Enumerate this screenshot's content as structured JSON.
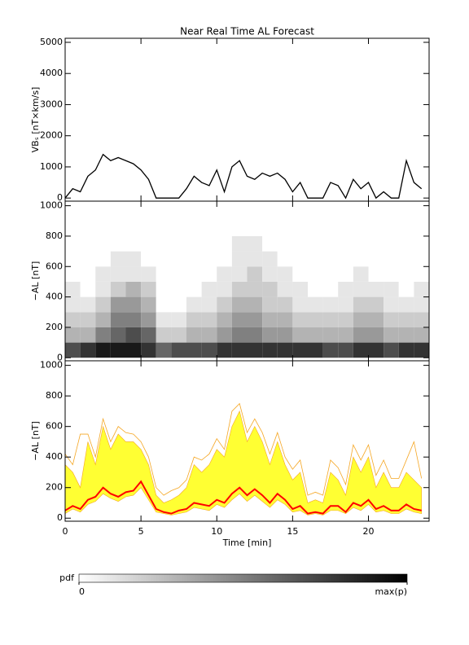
{
  "chart_data": [
    {
      "type": "line",
      "title": "Near Real Time AL Forecast",
      "ylabel": "VBₛ [nT×km/s]",
      "x": [
        0,
        0.5,
        1,
        1.5,
        2,
        2.5,
        3,
        3.5,
        4,
        4.5,
        5,
        5.5,
        6,
        6.5,
        7,
        7.5,
        8,
        8.5,
        9,
        9.5,
        10,
        10.5,
        11,
        11.5,
        12,
        12.5,
        13,
        13.5,
        14,
        14.5,
        15,
        15.5,
        16,
        16.5,
        17,
        17.5,
        18,
        18.5,
        19,
        19.5,
        20,
        20.5,
        21,
        21.5,
        22,
        22.5,
        23,
        23.5
      ],
      "series": [
        {
          "color": "#000000",
          "values": [
            0,
            300,
            200,
            700,
            900,
            1400,
            1200,
            1300,
            1200,
            1100,
            900,
            600,
            0,
            0,
            0,
            0,
            300,
            700,
            500,
            400,
            900,
            200,
            1000,
            1200,
            700,
            600,
            800,
            700,
            800,
            600,
            200,
            500,
            0,
            0,
            0,
            500,
            400,
            0,
            600,
            300,
            500,
            0,
            200,
            0,
            0,
            1200,
            500,
            300
          ]
        }
      ],
      "xlim": [
        0,
        24
      ],
      "xticks": [
        0,
        5,
        10,
        15,
        20
      ],
      "show_xtick_labels": false,
      "ylim": [
        -100,
        5130
      ],
      "yticks": [
        0,
        1000,
        2000,
        3000,
        4000,
        5000
      ]
    },
    {
      "type": "heatmap",
      "ylabel": "−AL [nT]",
      "xbins": [
        0,
        1,
        2,
        3,
        4,
        5,
        6,
        7,
        8,
        9,
        10,
        11,
        12,
        13,
        14,
        15,
        16,
        17,
        18,
        19,
        20,
        21,
        22,
        23,
        24
      ],
      "ybins": [
        0,
        100,
        200,
        300,
        400,
        500,
        600,
        700,
        800
      ],
      "z": [
        [
          0.7,
          0.8,
          0.9,
          0.9,
          0.9,
          0.8,
          0.6,
          0.7,
          0.7,
          0.7,
          0.8,
          0.8,
          0.8,
          0.8,
          0.8,
          0.8,
          0.8,
          0.7,
          0.7,
          0.8,
          0.8,
          0.7,
          0.8,
          0.8
        ],
        [
          0.3,
          0.3,
          0.5,
          0.6,
          0.7,
          0.6,
          0.2,
          0.2,
          0.3,
          0.3,
          0.4,
          0.5,
          0.5,
          0.4,
          0.4,
          0.3,
          0.3,
          0.3,
          0.3,
          0.4,
          0.4,
          0.3,
          0.3,
          0.3
        ],
        [
          0.2,
          0.2,
          0.3,
          0.5,
          0.5,
          0.4,
          0.1,
          0.1,
          0.2,
          0.2,
          0.3,
          0.4,
          0.4,
          0.3,
          0.3,
          0.2,
          0.2,
          0.2,
          0.2,
          0.3,
          0.3,
          0.2,
          0.2,
          0.2
        ],
        [
          0.1,
          0.1,
          0.2,
          0.4,
          0.4,
          0.3,
          0,
          0,
          0.1,
          0.1,
          0.2,
          0.3,
          0.3,
          0.2,
          0.2,
          0.1,
          0.1,
          0.1,
          0.1,
          0.2,
          0.2,
          0.1,
          0.1,
          0.1
        ],
        [
          0.1,
          0,
          0.1,
          0.2,
          0.3,
          0.2,
          0,
          0,
          0,
          0.1,
          0.1,
          0.2,
          0.2,
          0.2,
          0.1,
          0.1,
          0,
          0,
          0.1,
          0.1,
          0.1,
          0.1,
          0,
          0.1
        ],
        [
          0,
          0,
          0.1,
          0.1,
          0.1,
          0.1,
          0,
          0,
          0,
          0,
          0.1,
          0.1,
          0.2,
          0.1,
          0.1,
          0,
          0,
          0,
          0,
          0.1,
          0,
          0,
          0,
          0
        ],
        [
          0,
          0,
          0,
          0.1,
          0.1,
          0,
          0,
          0,
          0,
          0,
          0,
          0.1,
          0.1,
          0.1,
          0,
          0,
          0,
          0,
          0,
          0,
          0,
          0,
          0,
          0
        ],
        [
          0,
          0,
          0,
          0,
          0,
          0,
          0,
          0,
          0,
          0,
          0,
          0.1,
          0.1,
          0,
          0,
          0,
          0,
          0,
          0,
          0,
          0,
          0,
          0,
          0
        ]
      ],
      "clim": [
        0,
        1
      ],
      "colorbar": {
        "label": "pdf",
        "ticks": [
          0,
          {
            "value": 1,
            "label": "max(p)"
          }
        ]
      },
      "xlim": [
        0,
        24
      ],
      "xticks": [
        0,
        5,
        10,
        15,
        20
      ],
      "show_xtick_labels": false,
      "ylim": [
        -20,
        1030
      ],
      "yticks": [
        0,
        200,
        400,
        600,
        800,
        1000
      ]
    },
    {
      "type": "line",
      "ylabel": "−AL [nT]",
      "xlabel": "Time [min]",
      "x": [
        0,
        0.5,
        1,
        1.5,
        2,
        2.5,
        3,
        3.5,
        4,
        4.5,
        5,
        5.5,
        6,
        6.5,
        7,
        7.5,
        8,
        8.5,
        9,
        9.5,
        10,
        10.5,
        11,
        11.5,
        12,
        12.5,
        13,
        13.5,
        14,
        14.5,
        15,
        15.5,
        16,
        16.5,
        17,
        17.5,
        18,
        18.5,
        19,
        19.5,
        20,
        20.5,
        21,
        21.5,
        22,
        22.5,
        23,
        23.5
      ],
      "series": [
        {
          "color": "#f5a623",
          "values": [
            420,
            350,
            550,
            550,
            400,
            650,
            500,
            600,
            560,
            550,
            500,
            400,
            200,
            150,
            180,
            200,
            250,
            400,
            380,
            420,
            520,
            450,
            700,
            750,
            560,
            650,
            560,
            420,
            560,
            400,
            320,
            380,
            150,
            170,
            150,
            380,
            330,
            220,
            480,
            380,
            480,
            280,
            380,
            260,
            260,
            380,
            500,
            260
          ]
        },
        {
          "color": "#ffff33",
          "values": [
            350,
            300,
            200,
            500,
            350,
            600,
            450,
            550,
            500,
            500,
            450,
            350,
            150,
            100,
            120,
            150,
            200,
            350,
            300,
            350,
            450,
            400,
            600,
            700,
            500,
            600,
            500,
            350,
            500,
            350,
            250,
            300,
            100,
            120,
            100,
            300,
            250,
            150,
            400,
            300,
            400,
            200,
            300,
            200,
            200,
            300,
            250,
            200
          ],
          "lower": [
            30,
            60,
            40,
            90,
            110,
            160,
            130,
            110,
            140,
            150,
            200,
            120,
            40,
            30,
            20,
            30,
            40,
            70,
            60,
            50,
            90,
            70,
            120,
            160,
            110,
            150,
            110,
            70,
            120,
            90,
            40,
            50,
            20,
            30,
            20,
            50,
            50,
            30,
            70,
            50,
            90,
            40,
            50,
            30,
            30,
            60,
            40,
            30
          ]
        },
        {
          "color": "#ff0000",
          "values": [
            50,
            80,
            60,
            120,
            140,
            200,
            160,
            140,
            170,
            180,
            240,
            150,
            60,
            40,
            30,
            50,
            60,
            100,
            90,
            80,
            120,
            100,
            160,
            200,
            150,
            190,
            150,
            100,
            160,
            120,
            60,
            80,
            30,
            40,
            30,
            80,
            80,
            40,
            100,
            80,
            120,
            60,
            80,
            50,
            50,
            90,
            60,
            50
          ]
        }
      ],
      "xlim": [
        0,
        24
      ],
      "xticks": [
        0,
        5,
        10,
        15,
        20
      ],
      "show_xtick_labels": true,
      "ylim": [
        -20,
        1030
      ],
      "yticks": [
        0,
        200,
        400,
        600,
        800,
        1000
      ]
    }
  ]
}
